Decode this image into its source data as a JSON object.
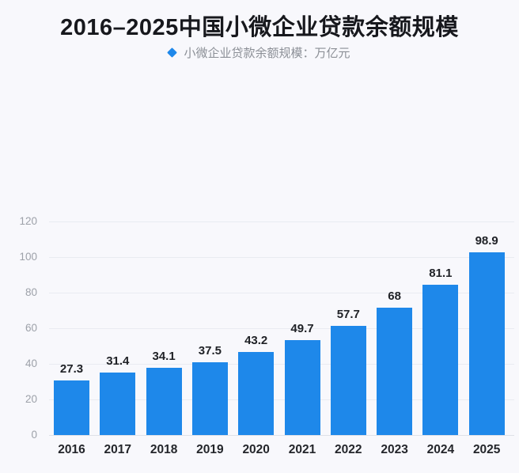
{
  "title": "2016–2025中国小微企业贷款余额规模",
  "legend": {
    "marker": "diamond-icon",
    "label": "小微企业贷款余额规模：万亿元"
  },
  "colors": {
    "background": "#F8F8FC",
    "bar": "#1E88EA",
    "title_text": "#17181D",
    "legend_text": "#8B8F96",
    "axis_tick_text": "#9DA1A9",
    "value_label_text": "#202227",
    "gridline": "#E9EBF1",
    "baseline": "#DFE1E8"
  },
  "chart_data": {
    "type": "bar",
    "title": "2016–2025中国小微企业贷款余额规模",
    "series_name": "小微企业贷款余额规模",
    "unit": "万亿元",
    "categories": [
      "2016",
      "2017",
      "2018",
      "2019",
      "2020",
      "2021",
      "2022",
      "2023",
      "2024",
      "2025"
    ],
    "values": [
      27.3,
      31.4,
      34.1,
      37.5,
      43.2,
      49.7,
      57.7,
      68,
      81.1,
      98.9
    ],
    "value_labels": [
      "27.3",
      "31.4",
      "34.1",
      "37.5",
      "43.2",
      "49.7",
      "57.7",
      "68",
      "81.1",
      "98.9"
    ],
    "xlabel": "",
    "ylabel": "",
    "ylim": [
      0,
      120
    ],
    "yticks": [
      0,
      20,
      40,
      60,
      80,
      100,
      120
    ],
    "grid": true,
    "legend_position": "top",
    "bar_color": "#1E88EA"
  }
}
